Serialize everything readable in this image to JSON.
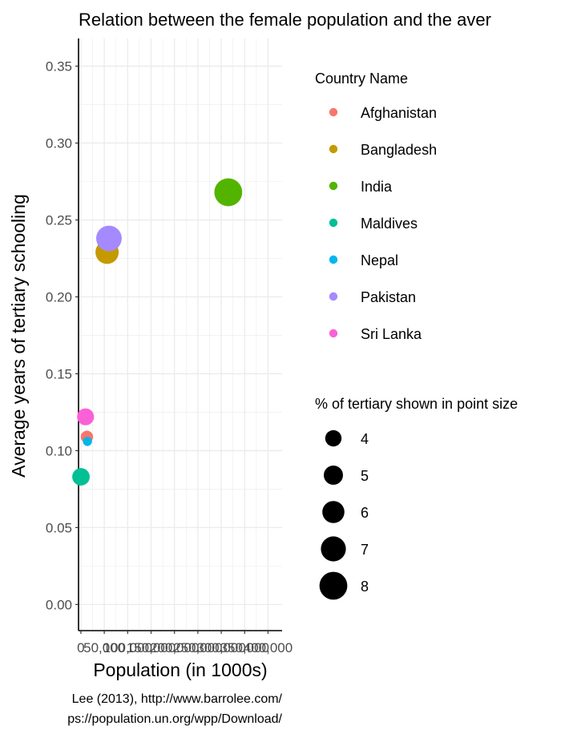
{
  "chart_data": {
    "type": "scatter",
    "title": "Relation between the female population and the aver",
    "xlabel": "Population (in 1000s)",
    "ylabel": "Average years of tertiary schooling",
    "xlim": [
      -5000,
      430000
    ],
    "ylim": [
      -0.017,
      0.368
    ],
    "x_ticks": [
      0,
      50000,
      100000,
      150000,
      200000,
      250000,
      300000,
      350000,
      400000
    ],
    "x_tick_labels": [
      "0",
      "50,000",
      "100,000",
      "150,000",
      "200,000",
      "250,000",
      "300,000",
      "350,000",
      "400,000"
    ],
    "y_ticks": [
      0.0,
      0.05,
      0.1,
      0.15,
      0.2,
      0.25,
      0.3,
      0.35
    ],
    "y_tick_labels": [
      "0.00",
      "0.05",
      "0.10",
      "0.15",
      "0.20",
      "0.25",
      "0.30",
      "0.35"
    ],
    "grid": true,
    "legend_position": "right",
    "color_legend_title": "Country Name",
    "size_legend_title": "% of tertiary shown in point size",
    "size_legend_values": [
      4,
      5,
      6,
      7,
      8
    ],
    "series": [
      {
        "name": "Afghanistan",
        "color": "#F8766D",
        "x": 13000,
        "y": 0.109,
        "size": 2.6
      },
      {
        "name": "Bangladesh",
        "color": "#C49A00",
        "x": 56000,
        "y": 0.229,
        "size": 6.4
      },
      {
        "name": "India",
        "color": "#53B400",
        "x": 315000,
        "y": 0.268,
        "size": 8.0
      },
      {
        "name": "Maldives",
        "color": "#00C094",
        "x": 200,
        "y": 0.083,
        "size": 4.4
      },
      {
        "name": "Nepal",
        "color": "#00B6EB",
        "x": 14000,
        "y": 0.106,
        "size": 1.5
      },
      {
        "name": "Pakistan",
        "color": "#A58AFF",
        "x": 60000,
        "y": 0.238,
        "size": 7.2
      },
      {
        "name": "Sri Lanka",
        "color": "#FB61D7",
        "x": 10000,
        "y": 0.122,
        "size": 4.2
      }
    ]
  },
  "caption": {
    "line1": "Lee (2013), http://www.barrolee.com/",
    "line2": "ps://population.un.org/wpp/Download/"
  }
}
